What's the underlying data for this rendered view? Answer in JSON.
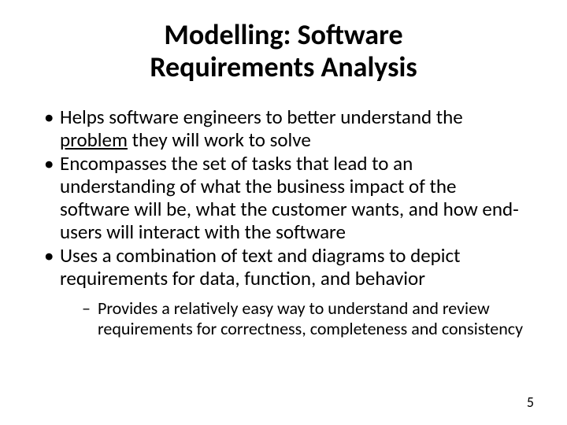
{
  "title_line1": "Modelling: Software",
  "title_line2": "Requirements Analysis",
  "title_fontsize": 36,
  "bullets": [
    {
      "pre": "Helps software engineers to better understand the ",
      "underlined": "problem",
      "post": " they will work to solve"
    },
    {
      "text": "Encompasses the set of tasks that lead to an understanding of what the business impact of the software will be, what the customer wants, and how end-users will interact with the software"
    },
    {
      "text": "Uses a combination of text and diagrams to depict requirements for data, function, and behavior"
    }
  ],
  "bullet_fontsize": 25,
  "sub_bullets": [
    {
      "text": "Provides a relatively easy way to understand and review requirements for correctness, completeness and consistency"
    }
  ],
  "sub_bullet_fontsize": 22,
  "page_number": "5",
  "page_number_fontsize": 18,
  "colors": {
    "text": "#000000",
    "background": "#ffffff"
  }
}
